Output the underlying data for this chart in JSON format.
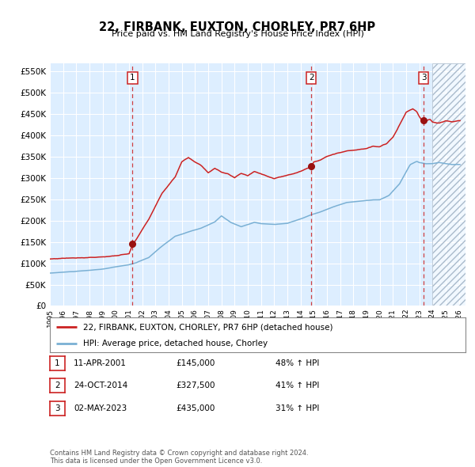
{
  "title": "22, FIRBANK, EUXTON, CHORLEY, PR7 6HP",
  "subtitle": "Price paid vs. HM Land Registry's House Price Index (HPI)",
  "footer": "Contains HM Land Registry data © Crown copyright and database right 2024.\nThis data is licensed under the Open Government Licence v3.0.",
  "legend_line1": "22, FIRBANK, EUXTON, CHORLEY, PR7 6HP (detached house)",
  "legend_line2": "HPI: Average price, detached house, Chorley",
  "sale_points": [
    {
      "num": 1,
      "date": "11-APR-2001",
      "price": 145000,
      "pct": "48%",
      "dir": "↑"
    },
    {
      "num": 2,
      "date": "24-OCT-2014",
      "price": 327500,
      "pct": "41%",
      "dir": "↑"
    },
    {
      "num": 3,
      "date": "02-MAY-2023",
      "price": 435000,
      "pct": "31%",
      "dir": "↑"
    }
  ],
  "sale_years": [
    2001.27,
    2014.81,
    2023.33
  ],
  "sale_prices": [
    145000,
    327500,
    435000
  ],
  "hpi_color": "#7ab0d4",
  "price_color": "#cc2222",
  "marker_color": "#991111",
  "vline_color": "#cc2222",
  "bg_color": "#ddeeff",
  "hatch_color": "#aabbcc",
  "ylim": [
    0,
    570000
  ],
  "xlim_start": 1995.0,
  "xlim_end": 2026.5,
  "hatch_start": 2024.0,
  "yticks": [
    0,
    50000,
    100000,
    150000,
    200000,
    250000,
    300000,
    350000,
    400000,
    450000,
    500000,
    550000
  ],
  "xticks": [
    1995,
    1996,
    1997,
    1998,
    1999,
    2000,
    2001,
    2002,
    2003,
    2004,
    2005,
    2006,
    2007,
    2008,
    2009,
    2010,
    2011,
    2012,
    2013,
    2014,
    2015,
    2016,
    2017,
    2018,
    2019,
    2020,
    2021,
    2022,
    2023,
    2024,
    2025,
    2026
  ]
}
